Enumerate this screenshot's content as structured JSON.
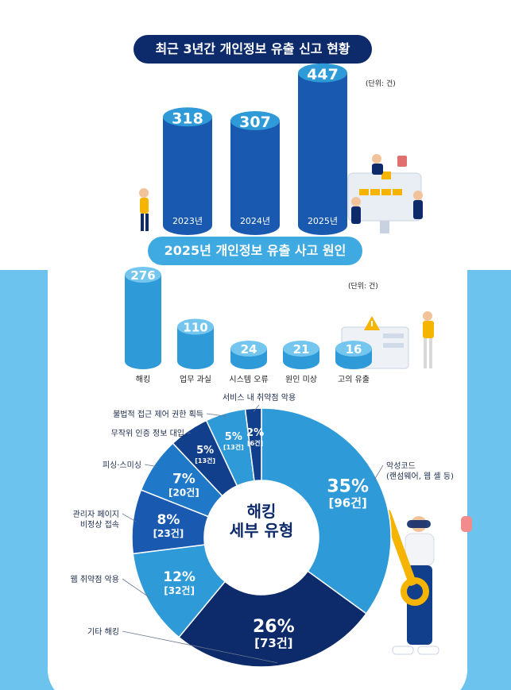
{
  "colors": {
    "navy": "#0d2a6a",
    "dark_blue": "#123f8c",
    "blue": "#1a59b0",
    "mid_blue": "#1f78c8",
    "light_blue": "#2f9ad8",
    "sky": "#6cc3ee",
    "accent": "#3fa9e1"
  },
  "chart_data": [
    {
      "type": "bar",
      "title": "최근 3년간 개인정보 유출 신고 현황",
      "unit": "(단위: 건)",
      "categories": [
        "2023년",
        "2024년",
        "2025년"
      ],
      "values": [
        318,
        307,
        447
      ]
    },
    {
      "type": "bar",
      "title": "2025년 개인정보 유출 사고 원인",
      "unit": "(단위: 건)",
      "categories": [
        "해킹",
        "업무 과실",
        "시스템 오류",
        "원인 미상",
        "고의 유출"
      ],
      "values": [
        276,
        110,
        24,
        21,
        16
      ]
    },
    {
      "type": "pie",
      "center_label": [
        "해킹",
        "세부 유형"
      ],
      "count_suffix": "건",
      "slices": [
        {
          "label": "악성코드\n(랜섬웨어, 웹 셸 등)",
          "percent": 35,
          "count": 96
        },
        {
          "label": "기타 해킹",
          "percent": 26,
          "count": 73
        },
        {
          "label": "웹 취약점 악용",
          "percent": 12,
          "count": 32
        },
        {
          "label": "관리자 페이지\n비정상 접속",
          "percent": 8,
          "count": 23
        },
        {
          "label": "피싱·스미싱",
          "percent": 7,
          "count": 20
        },
        {
          "label": "무작위 인증 정보 대입",
          "percent": 5,
          "count": 13
        },
        {
          "label": "불법적 접근 제어 권한 획득",
          "percent": 5,
          "count": 13
        },
        {
          "label": "서비스 내 취약점 악용",
          "percent": 2,
          "count": 6
        }
      ]
    }
  ]
}
